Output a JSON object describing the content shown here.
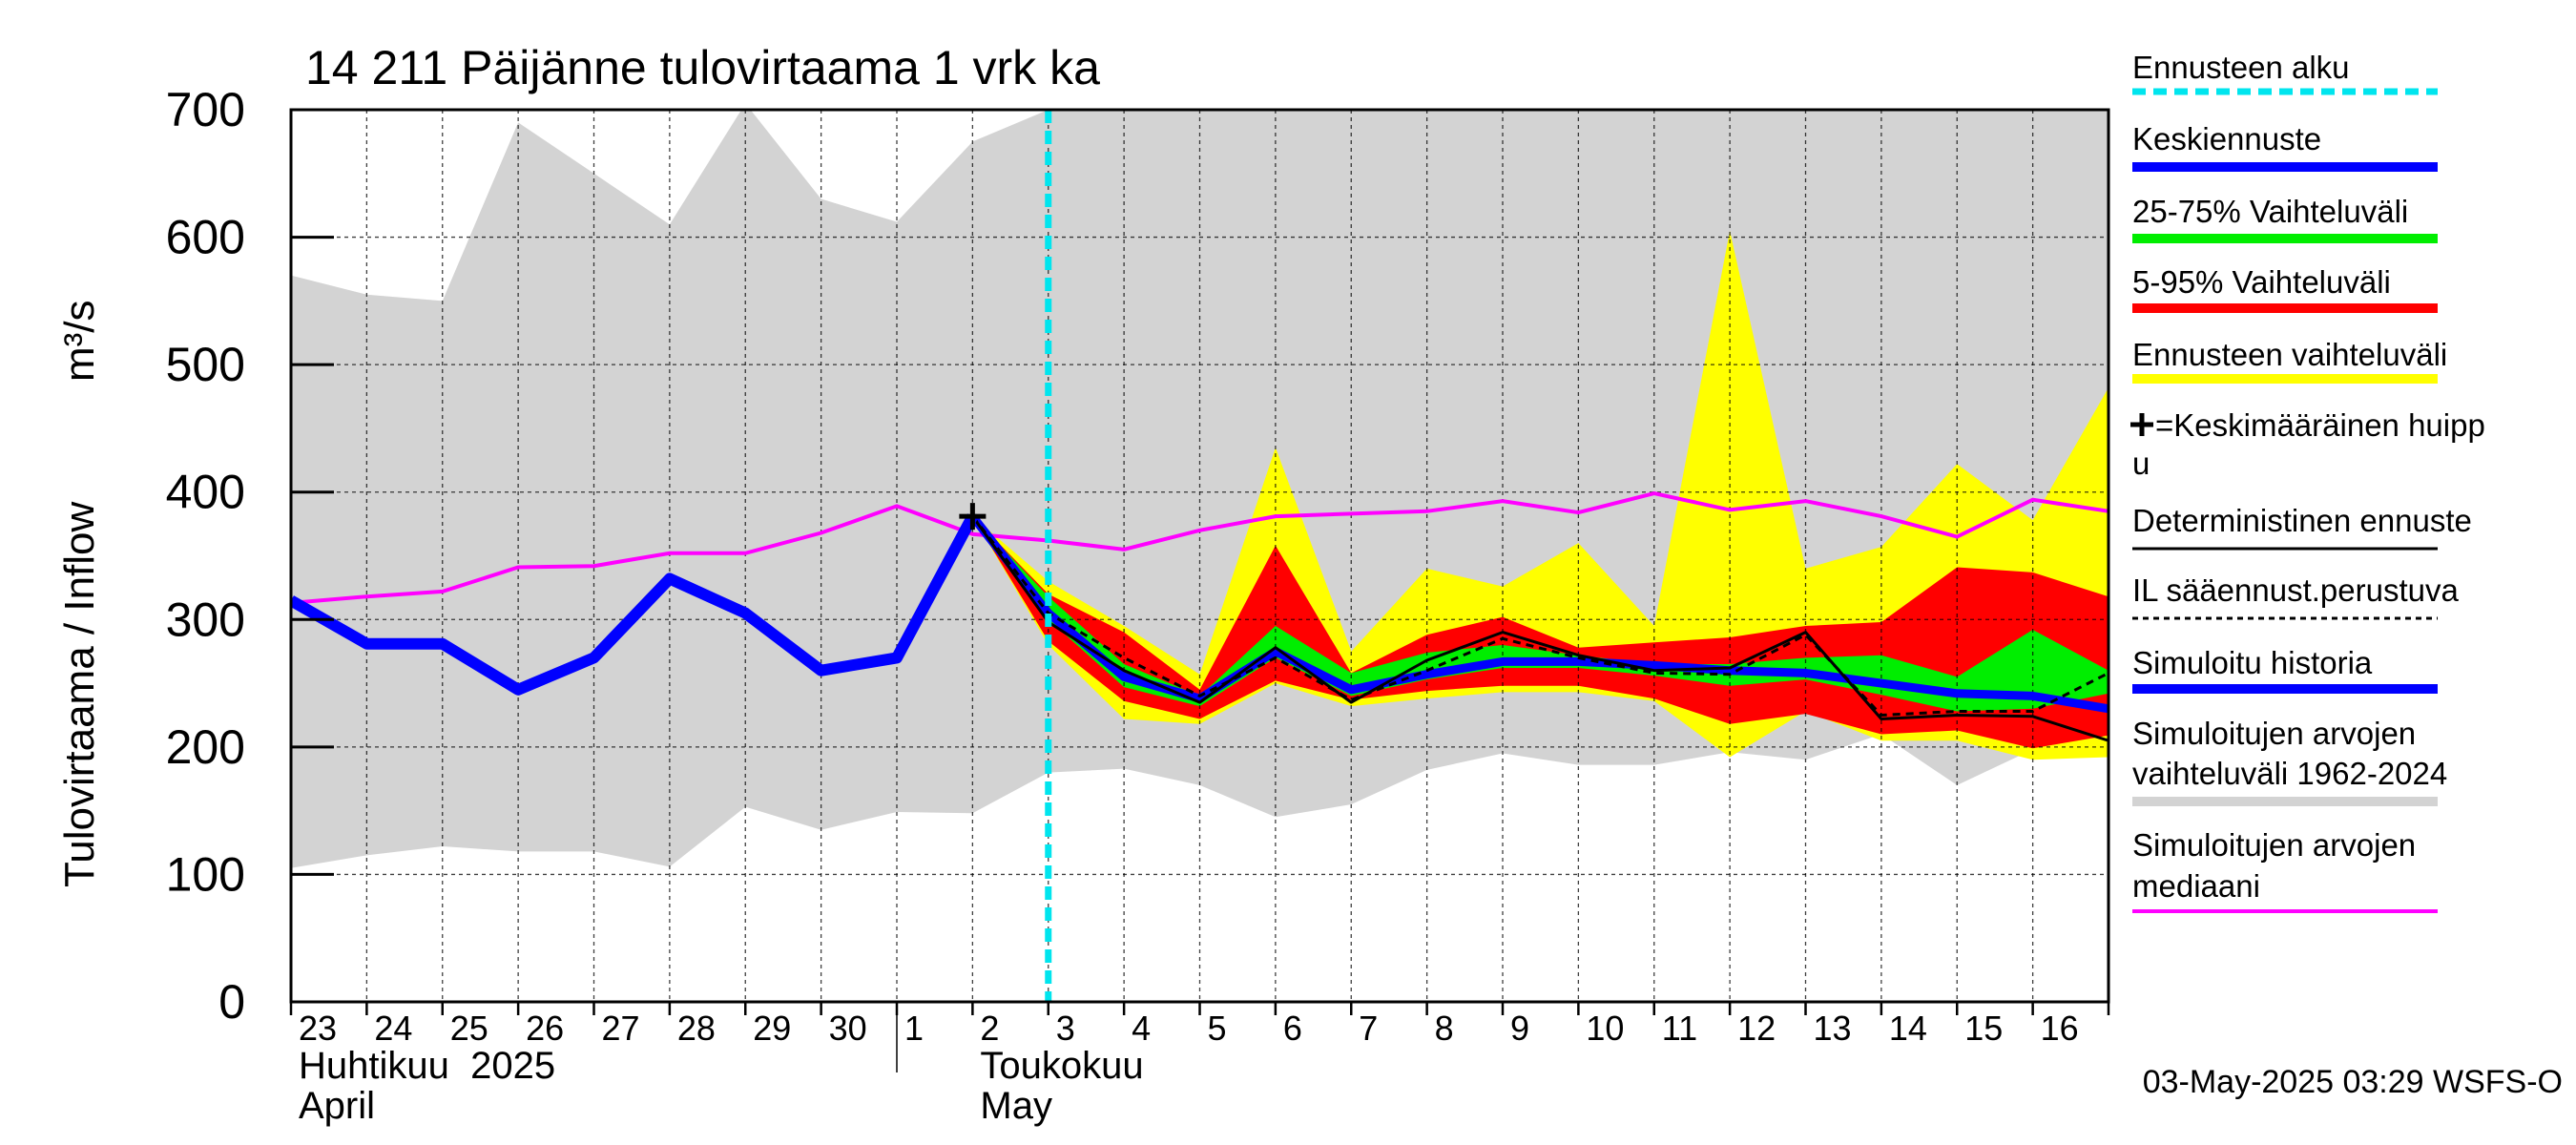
{
  "chart_data": {
    "type": "area",
    "title": "14 211 Päijänne tulovirtaama 1 vrk ka",
    "ylabel": "Tulovirtaama / Inflow",
    "yunit": "m³/s",
    "ylim": [
      0,
      700
    ],
    "yticks": [
      0,
      100,
      200,
      300,
      400,
      500,
      600,
      700
    ],
    "xlim": [
      0,
      24
    ],
    "day_labels": [
      "23",
      "24",
      "25",
      "26",
      "27",
      "28",
      "29",
      "30",
      "1",
      "2",
      "3",
      "4",
      "5",
      "6",
      "7",
      "8",
      "9",
      "10",
      "11",
      "12",
      "13",
      "14",
      "15",
      "16"
    ],
    "month_labels": [
      {
        "name": "Huhtikuu  2025",
        "name2": "April",
        "at": 0
      },
      {
        "name": "Toukokuu",
        "name2": "May",
        "at": 9
      }
    ],
    "month_divider_at": 8,
    "forecast_start": 10.0,
    "footer": "03-May-2025 03:29 WSFS-O",
    "colors": {
      "hist_range": "#d3d3d3",
      "fc_range": "#ffff00",
      "p5_95": "#ff0000",
      "p25_75": "#00ee00",
      "mean": "#0000ff",
      "deterministic": "#000000",
      "il": "#000000",
      "simulated": "#0000ff",
      "median": "#ff00ff",
      "forecast_line": "#00e5ee"
    },
    "historical_range": {
      "x": [
        0,
        1,
        2,
        3,
        4,
        5,
        6,
        7,
        8,
        9,
        10,
        11,
        12,
        13,
        14,
        15,
        16,
        17,
        18,
        19,
        20,
        21,
        22,
        23,
        24
      ],
      "low": [
        105,
        115,
        122,
        118,
        118,
        106,
        153,
        135,
        149,
        148,
        180,
        183,
        170,
        145,
        155,
        182,
        195,
        186,
        186,
        196,
        190,
        210,
        170,
        198,
        205
      ],
      "high": [
        570,
        555,
        550,
        690,
        650,
        610,
        705,
        630,
        612,
        675,
        700,
        700,
        700,
        700,
        700,
        700,
        700,
        700,
        700,
        700,
        700,
        700,
        700,
        700,
        700
      ]
    },
    "median": {
      "x": [
        0,
        1,
        2,
        3,
        4,
        5,
        6,
        7,
        8,
        9,
        10,
        11,
        12,
        13,
        14,
        15,
        16,
        17,
        18,
        19,
        20,
        21,
        22,
        23,
        24
      ],
      "values": [
        313,
        318,
        322,
        341,
        342,
        352,
        352,
        368,
        389,
        367,
        362,
        355,
        370,
        381,
        383,
        385,
        393,
        384,
        399,
        386,
        393,
        381,
        365,
        394,
        385
      ]
    },
    "forecast_range": {
      "x": [
        9,
        10,
        11,
        12,
        13,
        14,
        15,
        16,
        17,
        18,
        19,
        20,
        21,
        22,
        23,
        24
      ],
      "low": [
        381,
        280,
        222,
        218,
        250,
        232,
        238,
        243,
        243,
        236,
        192,
        228,
        205,
        205,
        190,
        192
      ],
      "high": [
        381,
        330,
        295,
        257,
        435,
        275,
        340,
        326,
        360,
        295,
        605,
        340,
        357,
        422,
        378,
        482
      ]
    },
    "p5_95": {
      "x": [
        9,
        10,
        11,
        12,
        13,
        14,
        15,
        16,
        17,
        18,
        19,
        20,
        21,
        22,
        23,
        24
      ],
      "low": [
        381,
        283,
        236,
        222,
        252,
        237,
        244,
        248,
        248,
        238,
        218,
        226,
        210,
        213,
        199,
        209
      ],
      "high": [
        381,
        320,
        290,
        245,
        358,
        258,
        288,
        302,
        278,
        282,
        286,
        295,
        298,
        341,
        337,
        318
      ]
    },
    "p25_75": {
      "x": [
        9,
        10,
        11,
        12,
        13,
        14,
        15,
        16,
        17,
        18,
        19,
        20,
        21,
        22,
        23,
        24
      ],
      "low": [
        381,
        300,
        247,
        232,
        270,
        240,
        253,
        262,
        262,
        256,
        248,
        253,
        241,
        228,
        230,
        242
      ],
      "high": [
        381,
        318,
        265,
        240,
        295,
        258,
        274,
        280,
        272,
        265,
        265,
        270,
        272,
        255,
        292,
        260
      ]
    },
    "series": [
      {
        "name": "Keskiennuste",
        "x": [
          9,
          10,
          11,
          12,
          13,
          14,
          15,
          16,
          17,
          18,
          19,
          20,
          21,
          22,
          23,
          24
        ],
        "values": [
          381,
          305,
          255,
          238,
          275,
          245,
          257,
          267,
          267,
          264,
          260,
          258,
          250,
          242,
          240,
          230
        ]
      },
      {
        "name": "Deterministinen ennuste",
        "x": [
          9,
          10,
          11,
          12,
          13,
          14,
          15,
          16,
          17,
          18,
          19,
          20,
          21,
          22,
          23,
          24
        ],
        "values": [
          381,
          298,
          260,
          235,
          278,
          235,
          268,
          290,
          272,
          260,
          262,
          290,
          222,
          225,
          224,
          205
        ]
      },
      {
        "name": "IL sääennust.perustuva",
        "x": [
          9,
          10,
          11,
          12,
          13,
          14,
          15,
          16,
          17,
          18,
          19,
          20,
          21,
          22,
          23,
          24
        ],
        "values": [
          381,
          305,
          270,
          240,
          270,
          237,
          260,
          285,
          270,
          258,
          257,
          288,
          225,
          228,
          228,
          258
        ]
      },
      {
        "name": "Simuloitu historia",
        "x": [
          0,
          1,
          2,
          3,
          4,
          5,
          6,
          7,
          8,
          9
        ],
        "values": [
          315,
          281,
          281,
          245,
          270,
          332,
          305,
          260,
          270,
          381
        ]
      }
    ],
    "peak": {
      "x": 9,
      "value": 381
    },
    "legend": [
      {
        "key": "forecast_line",
        "label": "Ennusteen alku",
        "style": "dashed"
      },
      {
        "key": "mean",
        "label": "Keskiennuste",
        "style": "thick"
      },
      {
        "key": "p25_75",
        "label": "25-75% Vaihteluväli",
        "style": "thick"
      },
      {
        "key": "p5_95",
        "label": "5-95% Vaihteluväli",
        "style": "thick"
      },
      {
        "key": "fc_range",
        "label": "Ennusteen vaihteluväli",
        "style": "thick"
      },
      {
        "key": "peak",
        "label": "=Keskimääräinen huipp",
        "label2": "u",
        "style": "marker"
      },
      {
        "key": "deterministic",
        "label": "Deterministinen ennuste",
        "style": "thin"
      },
      {
        "key": "il",
        "label": "IL sääennust.perustuva",
        "style": "dotted"
      },
      {
        "key": "simulated",
        "label": "Simuloitu historia",
        "style": "thick"
      },
      {
        "key": "hist_range",
        "label": "Simuloitujen arvojen",
        "label2": "vaihteluväli 1962-2024",
        "style": "thick"
      },
      {
        "key": "median",
        "label": "Simuloitujen arvojen",
        "label2": "mediaani",
        "style": "medium"
      }
    ]
  }
}
